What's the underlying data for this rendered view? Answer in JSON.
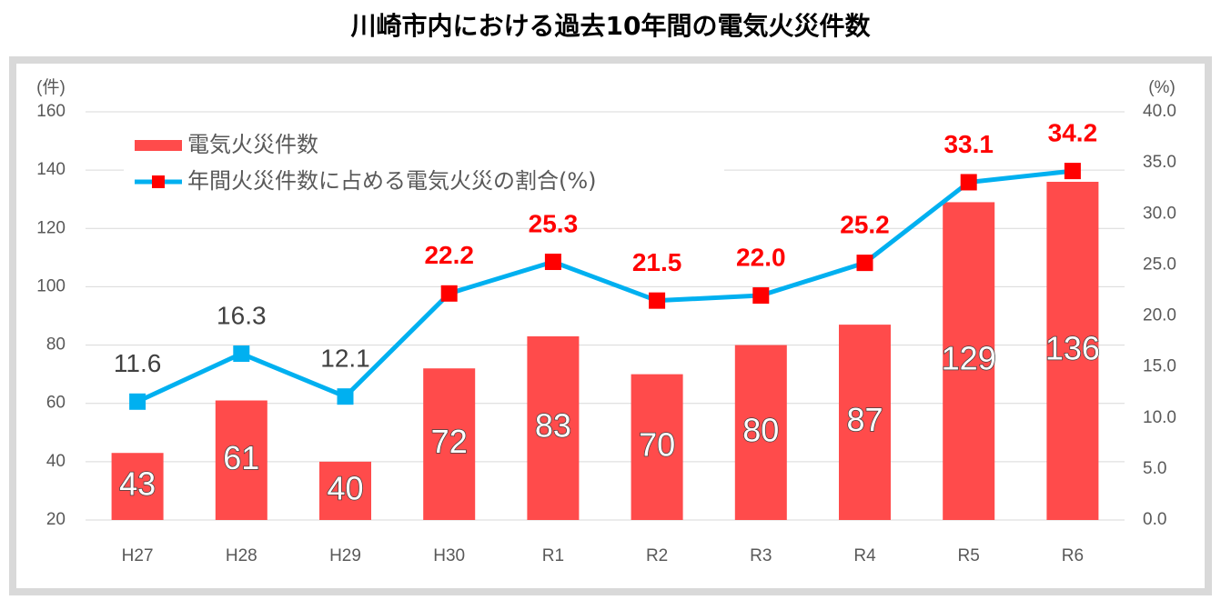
{
  "chart_data": {
    "type": "bar",
    "title": "川崎市内における過去10年間の電気火災件数",
    "y_label": "(件)",
    "y2_label": "(%)",
    "categories": [
      "H27",
      "H28",
      "H29",
      "H30",
      "R1",
      "R2",
      "R3",
      "R4",
      "R5",
      "R6"
    ],
    "series": [
      {
        "name": "電気火災件数",
        "type": "bar",
        "color": "#ff4b4b",
        "values": [
          43,
          61,
          40,
          72,
          83,
          70,
          80,
          87,
          129,
          136
        ]
      },
      {
        "name": "年間火災件数に占める電気火災の割合(%)",
        "type": "line",
        "axis": "y2",
        "color": "#00b0f0",
        "values": [
          11.6,
          16.3,
          12.1,
          22.2,
          25.3,
          21.5,
          22.0,
          25.2,
          33.1,
          34.2
        ],
        "value_labels": [
          "11.6",
          "16.3",
          "12.1",
          "22.2",
          "25.3",
          "21.5",
          "22.0",
          "25.2",
          "33.1",
          "34.2"
        ],
        "point_colors": [
          "#00b0f0",
          "#00b0f0",
          "#00b0f0",
          "#ff0000",
          "#ff0000",
          "#ff0000",
          "#ff0000",
          "#ff0000",
          "#ff0000",
          "#ff0000"
        ],
        "label_colors": [
          "#404040",
          "#404040",
          "#404040",
          "#ff0000",
          "#ff0000",
          "#ff0000",
          "#ff0000",
          "#ff0000",
          "#ff0000",
          "#ff0000"
        ]
      }
    ],
    "ylim": [
      20,
      160
    ],
    "yticks": [
      20,
      40,
      60,
      80,
      100,
      120,
      140,
      160
    ],
    "y2lim": [
      0,
      40
    ],
    "y2ticks": [
      {
        "value": 0,
        "label": "0.0"
      },
      {
        "value": 5,
        "label": "5.0"
      },
      {
        "value": 10,
        "label": "10.0"
      },
      {
        "value": 15,
        "label": "15.0"
      },
      {
        "value": 20,
        "label": "20.0"
      },
      {
        "value": 25,
        "label": "25.0"
      },
      {
        "value": 30,
        "label": "30.0"
      },
      {
        "value": 35,
        "label": "35.0"
      },
      {
        "value": 40,
        "label": "40.0"
      }
    ],
    "grid": true,
    "legend": "upper left"
  }
}
